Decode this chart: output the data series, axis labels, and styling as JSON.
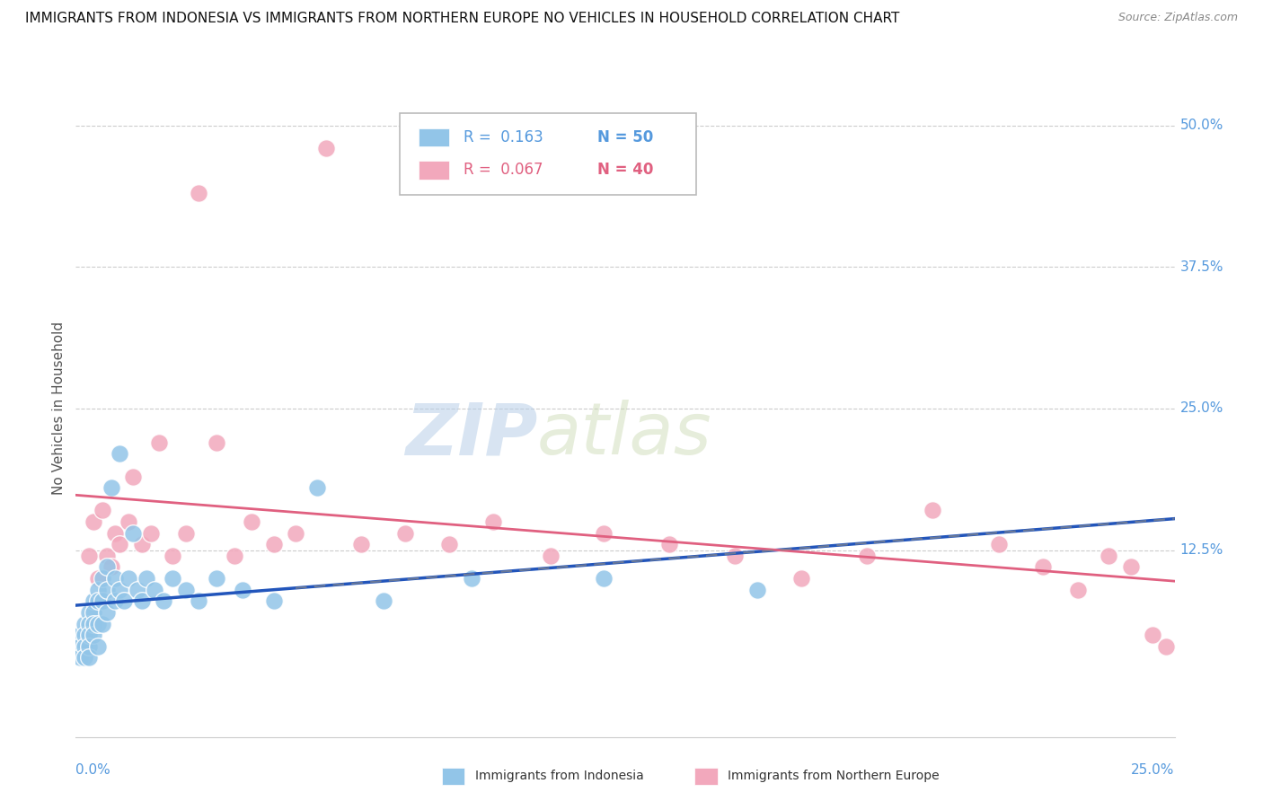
{
  "title": "IMMIGRANTS FROM INDONESIA VS IMMIGRANTS FROM NORTHERN EUROPE NO VEHICLES IN HOUSEHOLD CORRELATION CHART",
  "source": "Source: ZipAtlas.com",
  "ylabel": "No Vehicles in Household",
  "ylabel_right_labels": [
    "50.0%",
    "37.5%",
    "25.0%",
    "12.5%"
  ],
  "ylabel_right_values": [
    0.5,
    0.375,
    0.25,
    0.125
  ],
  "x_min": 0.0,
  "x_max": 0.25,
  "y_min": -0.04,
  "y_max": 0.54,
  "legend1_label_r": "R =  0.163",
  "legend1_label_n": "N = 50",
  "legend2_label_r": "R =  0.067",
  "legend2_label_n": "N = 40",
  "series1_color": "#92C5E8",
  "series2_color": "#F2A8BC",
  "series1_line_color": "#2255BB",
  "series2_line_color": "#E06080",
  "watermark_zip": "ZIP",
  "watermark_atlas": "atlas",
  "indonesia_x": [
    0.001,
    0.001,
    0.001,
    0.002,
    0.002,
    0.002,
    0.002,
    0.003,
    0.003,
    0.003,
    0.003,
    0.003,
    0.004,
    0.004,
    0.004,
    0.004,
    0.005,
    0.005,
    0.005,
    0.005,
    0.006,
    0.006,
    0.006,
    0.007,
    0.007,
    0.007,
    0.008,
    0.009,
    0.009,
    0.01,
    0.01,
    0.011,
    0.012,
    0.013,
    0.014,
    0.015,
    0.016,
    0.018,
    0.02,
    0.022,
    0.025,
    0.028,
    0.032,
    0.038,
    0.045,
    0.055,
    0.07,
    0.09,
    0.12,
    0.155
  ],
  "indonesia_y": [
    0.05,
    0.04,
    0.03,
    0.06,
    0.05,
    0.04,
    0.03,
    0.07,
    0.06,
    0.05,
    0.04,
    0.03,
    0.08,
    0.07,
    0.06,
    0.05,
    0.09,
    0.08,
    0.06,
    0.04,
    0.1,
    0.08,
    0.06,
    0.11,
    0.09,
    0.07,
    0.18,
    0.1,
    0.08,
    0.21,
    0.09,
    0.08,
    0.1,
    0.14,
    0.09,
    0.08,
    0.1,
    0.09,
    0.08,
    0.1,
    0.09,
    0.08,
    0.1,
    0.09,
    0.08,
    0.18,
    0.08,
    0.1,
    0.1,
    0.09
  ],
  "northern_europe_x": [
    0.003,
    0.004,
    0.005,
    0.006,
    0.007,
    0.008,
    0.009,
    0.01,
    0.012,
    0.013,
    0.015,
    0.017,
    0.019,
    0.022,
    0.025,
    0.028,
    0.032,
    0.036,
    0.04,
    0.045,
    0.05,
    0.057,
    0.065,
    0.075,
    0.085,
    0.095,
    0.108,
    0.12,
    0.135,
    0.15,
    0.165,
    0.18,
    0.195,
    0.21,
    0.22,
    0.228,
    0.235,
    0.24,
    0.245,
    0.248
  ],
  "northern_europe_y": [
    0.12,
    0.15,
    0.1,
    0.16,
    0.12,
    0.11,
    0.14,
    0.13,
    0.15,
    0.19,
    0.13,
    0.14,
    0.22,
    0.12,
    0.14,
    0.44,
    0.22,
    0.12,
    0.15,
    0.13,
    0.14,
    0.48,
    0.13,
    0.14,
    0.13,
    0.15,
    0.12,
    0.14,
    0.13,
    0.12,
    0.1,
    0.12,
    0.16,
    0.13,
    0.11,
    0.09,
    0.12,
    0.11,
    0.05,
    0.04
  ]
}
